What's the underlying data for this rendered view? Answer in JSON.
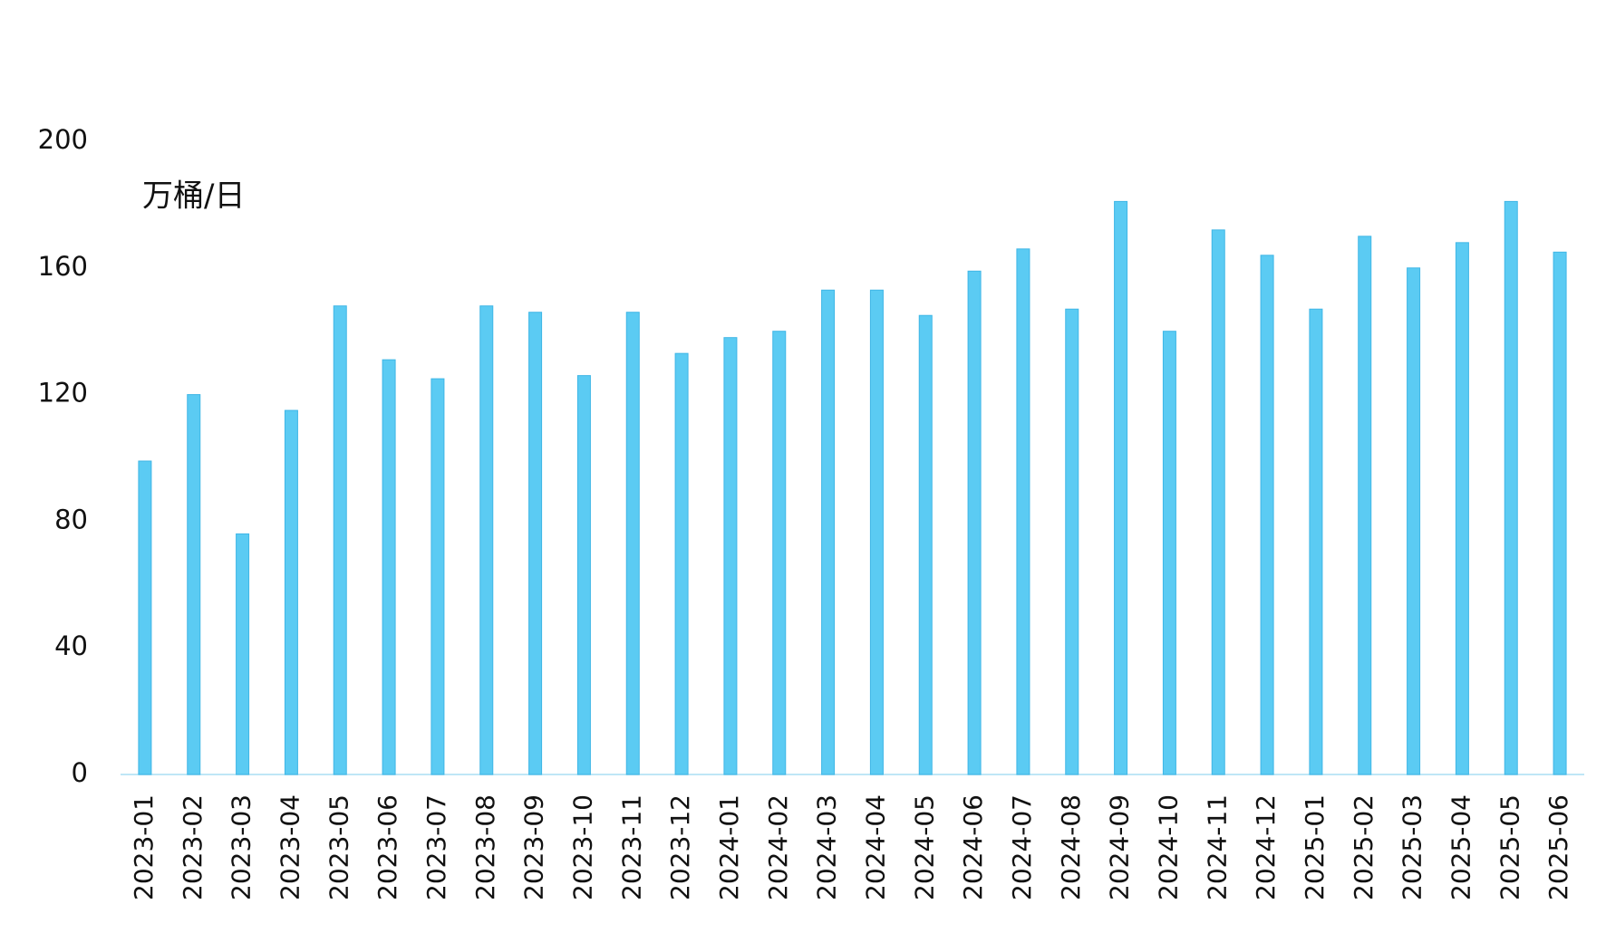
{
  "chart_data": {
    "type": "bar",
    "y_label": "万桶/日",
    "categories": [
      "2023-01",
      "2023-02",
      "2023-03",
      "2023-04",
      "2023-05",
      "2023-06",
      "2023-07",
      "2023-08",
      "2023-09",
      "2023-10",
      "2023-11",
      "2023-12",
      "2024-01",
      "2024-02",
      "2024-03",
      "2024-04",
      "2024-05",
      "2024-06",
      "2024-07",
      "2024-08",
      "2024-09",
      "2024-10",
      "2024-11",
      "2024-12",
      "2025-01",
      "2025-02",
      "2025-03",
      "2025-04",
      "2025-05",
      "2025-06"
    ],
    "values": [
      99,
      120,
      76,
      115,
      148,
      131,
      125,
      148,
      146,
      126,
      146,
      133,
      138,
      140,
      153,
      153,
      145,
      159,
      166,
      147,
      181,
      140,
      172,
      164,
      147,
      170,
      160,
      168,
      181,
      165
    ],
    "color": "#5bcbf3",
    "ylim": [
      0,
      200
    ],
    "yticks": [
      0,
      40,
      80,
      120,
      160,
      200
    ],
    "grid": false
  }
}
